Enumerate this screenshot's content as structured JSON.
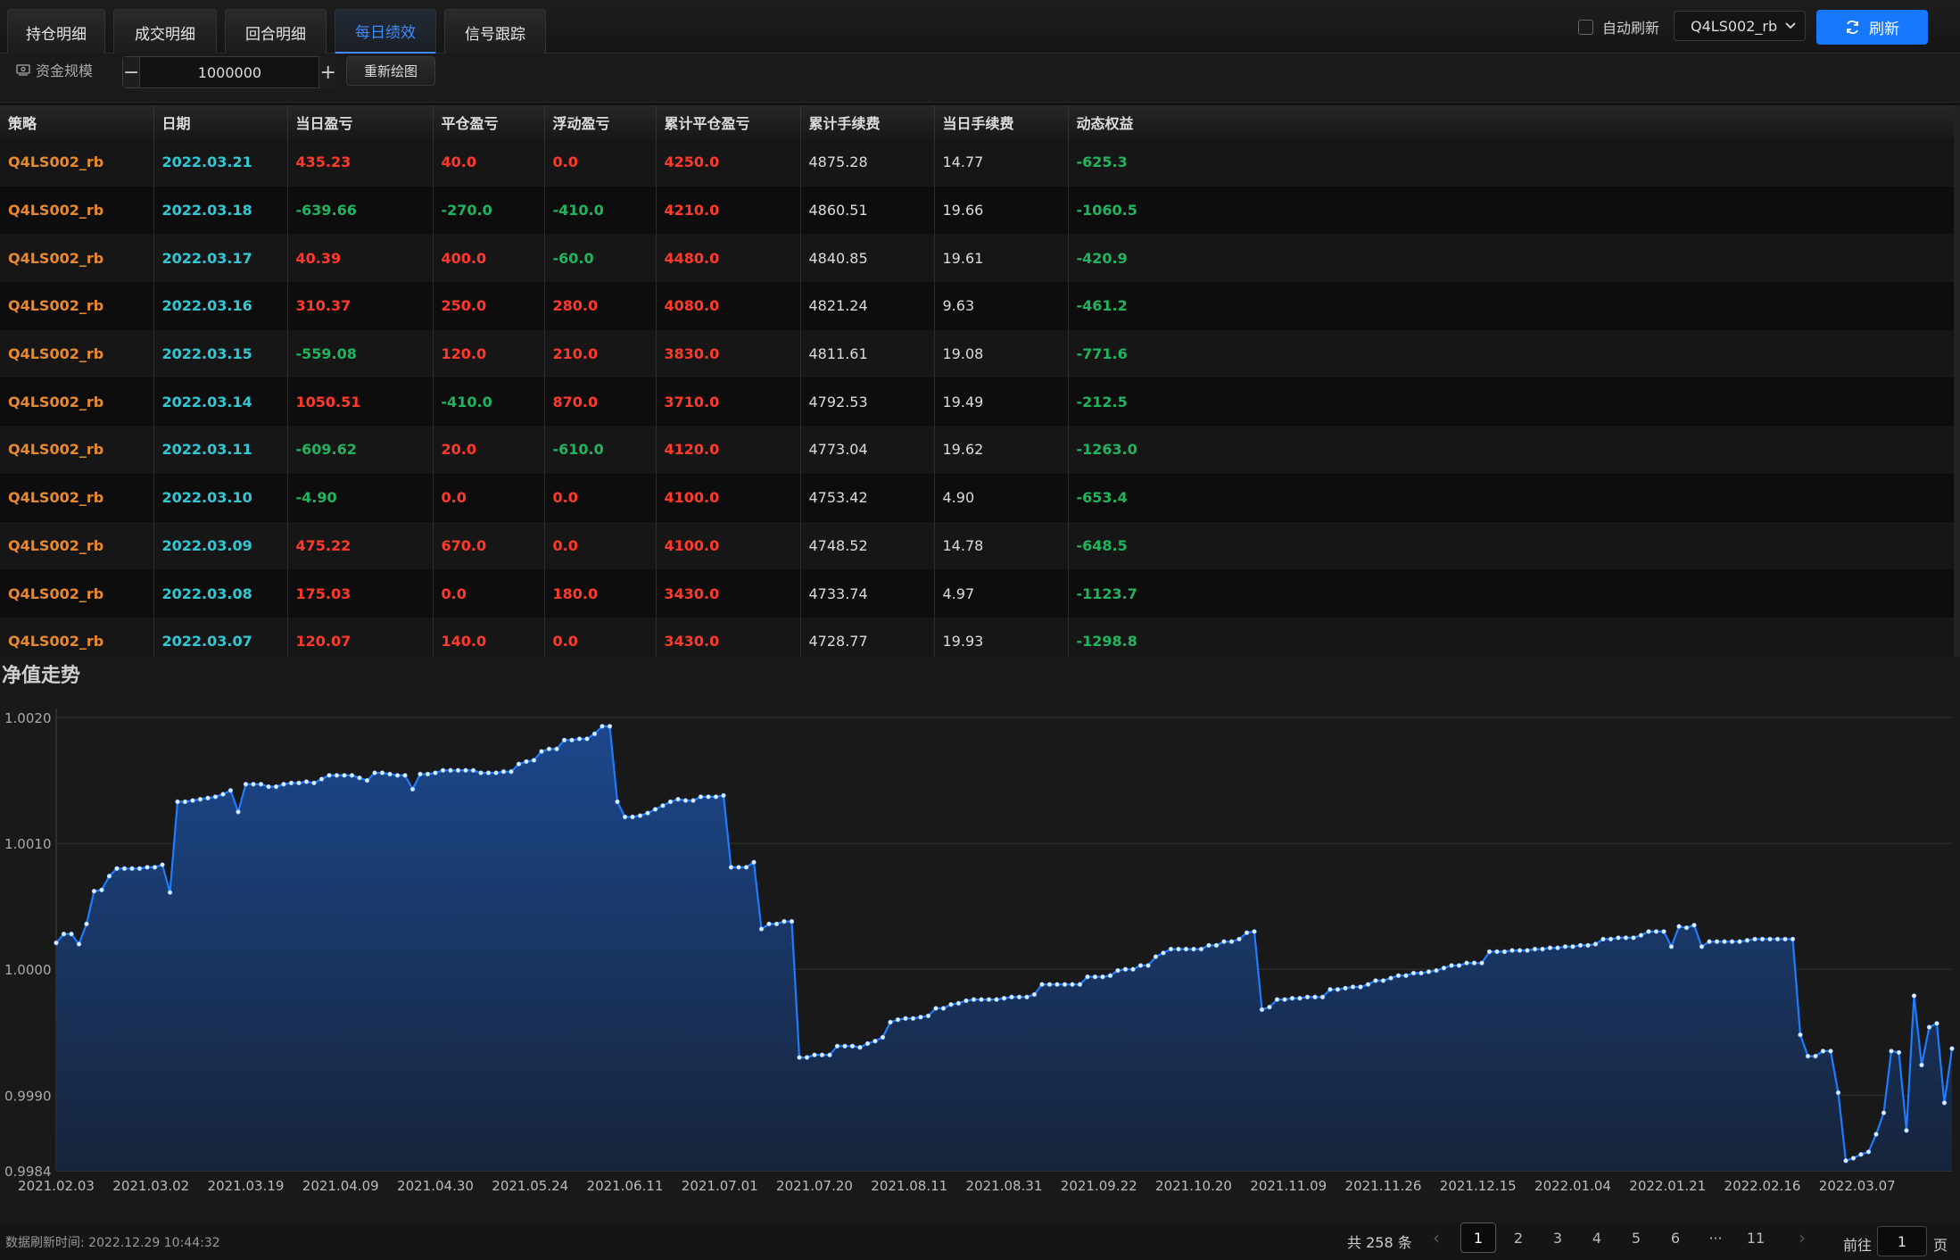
{
  "tabs": [
    {
      "label": "持仓明细",
      "active": false
    },
    {
      "label": "成交明细",
      "active": false
    },
    {
      "label": "回合明细",
      "active": false
    },
    {
      "label": "每日绩效",
      "active": true
    },
    {
      "label": "信号跟踪",
      "active": false
    }
  ],
  "header": {
    "auto_refresh_label": "自动刷新",
    "auto_refresh_checked": false,
    "strategy_value": "Q4LS002_rb",
    "refresh_label": "刷新"
  },
  "capital": {
    "label": "资金规模",
    "value": "1000000",
    "minus": "−",
    "plus": "+",
    "redraw_label": "重新绘图"
  },
  "table": {
    "columns": [
      "策略",
      "日期",
      "当日盈亏",
      "平仓盈亏",
      "浮动盈亏",
      "累计平仓盈亏",
      "累计手续费",
      "当日手续费",
      "动态权益"
    ],
    "rows": [
      [
        "Q4LS002_rb",
        "2022.03.21",
        "435.23",
        "40.0",
        "0.0",
        "4250.0",
        "4875.28",
        "14.77",
        "-625.3"
      ],
      [
        "Q4LS002_rb",
        "2022.03.18",
        "-639.66",
        "-270.0",
        "-410.0",
        "4210.0",
        "4860.51",
        "19.66",
        "-1060.5"
      ],
      [
        "Q4LS002_rb",
        "2022.03.17",
        "40.39",
        "400.0",
        "-60.0",
        "4480.0",
        "4840.85",
        "19.61",
        "-420.9"
      ],
      [
        "Q4LS002_rb",
        "2022.03.16",
        "310.37",
        "250.0",
        "280.0",
        "4080.0",
        "4821.24",
        "9.63",
        "-461.2"
      ],
      [
        "Q4LS002_rb",
        "2022.03.15",
        "-559.08",
        "120.0",
        "210.0",
        "3830.0",
        "4811.61",
        "19.08",
        "-771.6"
      ],
      [
        "Q4LS002_rb",
        "2022.03.14",
        "1050.51",
        "-410.0",
        "870.0",
        "3710.0",
        "4792.53",
        "19.49",
        "-212.5"
      ],
      [
        "Q4LS002_rb",
        "2022.03.11",
        "-609.62",
        "20.0",
        "-610.0",
        "4120.0",
        "4773.04",
        "19.62",
        "-1263.0"
      ],
      [
        "Q4LS002_rb",
        "2022.03.10",
        "-4.90",
        "0.0",
        "0.0",
        "4100.0",
        "4753.42",
        "4.90",
        "-653.4"
      ],
      [
        "Q4LS002_rb",
        "2022.03.09",
        "475.22",
        "670.0",
        "0.0",
        "4100.0",
        "4748.52",
        "14.78",
        "-648.5"
      ],
      [
        "Q4LS002_rb",
        "2022.03.08",
        "175.03",
        "0.0",
        "180.0",
        "3430.0",
        "4733.74",
        "4.97",
        "-1123.7"
      ],
      [
        "Q4LS002_rb",
        "2022.03.07",
        "120.07",
        "140.0",
        "0.0",
        "3430.0",
        "4728.77",
        "19.93",
        "-1298.8"
      ]
    ]
  },
  "chart_title": "净值走势",
  "chart_data": {
    "type": "area",
    "title": "净值走势",
    "xlabel": "",
    "ylabel": "",
    "ylim": [
      0.9984,
      1.002
    ],
    "yticks": [
      "1.0020",
      "1.0010",
      "1.0000",
      "0.9990",
      "0.9984"
    ],
    "xtick_labels": [
      "2021.02.03",
      "2021.03.02",
      "2021.03.19",
      "2021.04.09",
      "2021.04.30",
      "2021.05.24",
      "2021.06.11",
      "2021.07.01",
      "2021.07.20",
      "2021.08.11",
      "2021.08.31",
      "2021.09.22",
      "2021.10.20",
      "2021.11.09",
      "2021.11.26",
      "2021.12.15",
      "2022.01.04",
      "2022.01.21",
      "2022.02.16",
      "2022.03.07"
    ],
    "grid": true,
    "line_color": "#1f7cff",
    "series": [
      {
        "values": [
          1.00021,
          1.00028,
          1.00028,
          1.0002,
          1.00036,
          1.00062,
          1.00063,
          1.00074,
          1.0008,
          1.0008,
          1.0008,
          1.0008,
          1.00081,
          1.00081,
          1.00083,
          1.00061,
          1.00133,
          1.00133,
          1.00134,
          1.00135,
          1.00136,
          1.00137,
          1.00139,
          1.00142,
          1.00125,
          1.00147,
          1.00147,
          1.00147,
          1.00145,
          1.00145,
          1.00147,
          1.00148,
          1.00148,
          1.00149,
          1.00148,
          1.00151,
          1.00154,
          1.00154,
          1.00154,
          1.00154,
          1.00152,
          1.0015,
          1.00156,
          1.00156,
          1.00155,
          1.00154,
          1.00154,
          1.00143,
          1.00155,
          1.00155,
          1.00156,
          1.00158,
          1.00158,
          1.00158,
          1.00158,
          1.00158,
          1.00156,
          1.00156,
          1.00156,
          1.00157,
          1.00157,
          1.00163,
          1.00165,
          1.00166,
          1.00173,
          1.00175,
          1.00175,
          1.00182,
          1.00182,
          1.00183,
          1.00183,
          1.00187,
          1.00193,
          1.00193,
          1.00133,
          1.00121,
          1.00121,
          1.00122,
          1.00124,
          1.00127,
          1.0013,
          1.00133,
          1.00135,
          1.00134,
          1.00134,
          1.00137,
          1.00137,
          1.00137,
          1.00138,
          1.00081,
          1.00081,
          1.00081,
          1.00085,
          1.00032,
          1.00036,
          1.00036,
          1.00038,
          1.00038,
          0.9993,
          0.9993,
          0.99932,
          0.99932,
          0.99932,
          0.99939,
          0.99939,
          0.99939,
          0.99938,
          0.99941,
          0.99943,
          0.99946,
          0.99958,
          0.9996,
          0.99961,
          0.99961,
          0.99962,
          0.99963,
          0.99969,
          0.99969,
          0.99972,
          0.99973,
          0.99975,
          0.99976,
          0.99976,
          0.99976,
          0.99976,
          0.99977,
          0.99978,
          0.99978,
          0.99978,
          0.9998,
          0.99988,
          0.99988,
          0.99988,
          0.99988,
          0.99988,
          0.99988,
          0.99994,
          0.99994,
          0.99994,
          0.99995,
          0.99999,
          1.0,
          1.0,
          1.00003,
          1.00003,
          1.0001,
          1.00013,
          1.00016,
          1.00016,
          1.00016,
          1.00016,
          1.00016,
          1.00019,
          1.00019,
          1.00022,
          1.00022,
          1.00024,
          1.00029,
          1.0003,
          0.99968,
          0.9997,
          0.99976,
          0.99976,
          0.99977,
          0.99977,
          0.99978,
          0.99978,
          0.99978,
          0.99984,
          0.99984,
          0.99985,
          0.99986,
          0.99986,
          0.99988,
          0.99991,
          0.99991,
          0.99993,
          0.99995,
          0.99995,
          0.99997,
          0.99997,
          0.99998,
          0.99999,
          1.00001,
          1.00003,
          1.00003,
          1.00005,
          1.00005,
          1.00005,
          1.00014,
          1.00014,
          1.00014,
          1.00015,
          1.00015,
          1.00015,
          1.00016,
          1.00016,
          1.00017,
          1.00017,
          1.00018,
          1.00018,
          1.00019,
          1.00019,
          1.0002,
          1.00024,
          1.00024,
          1.00025,
          1.00025,
          1.00025,
          1.00027,
          1.0003,
          1.0003,
          1.0003,
          1.00018,
          1.00034,
          1.00033,
          1.00035,
          1.00018,
          1.00022,
          1.00022,
          1.00022,
          1.00022,
          1.00022,
          1.00023,
          1.00024,
          1.00024,
          1.00024,
          1.00024,
          1.00024,
          1.00024,
          0.99948,
          0.99931,
          0.99931,
          0.99935,
          0.99935,
          0.99902,
          0.99848,
          0.9985,
          0.99853,
          0.99855,
          0.99869,
          0.99886,
          0.99935,
          0.99934,
          0.99872,
          0.99979,
          0.99924,
          0.99954,
          0.99957,
          0.99894,
          0.99937
        ]
      }
    ]
  },
  "footer": {
    "refresh_time": "数据刷新时间: 2022.12.29 10:44:32",
    "total": "共 258 条",
    "prev": "‹",
    "next": "›",
    "pages": [
      "1",
      "2",
      "3",
      "4",
      "5",
      "6",
      "···",
      "11"
    ],
    "active_page": "1",
    "goto_label": "前往",
    "goto_value": "1",
    "page_suffix": "页"
  }
}
